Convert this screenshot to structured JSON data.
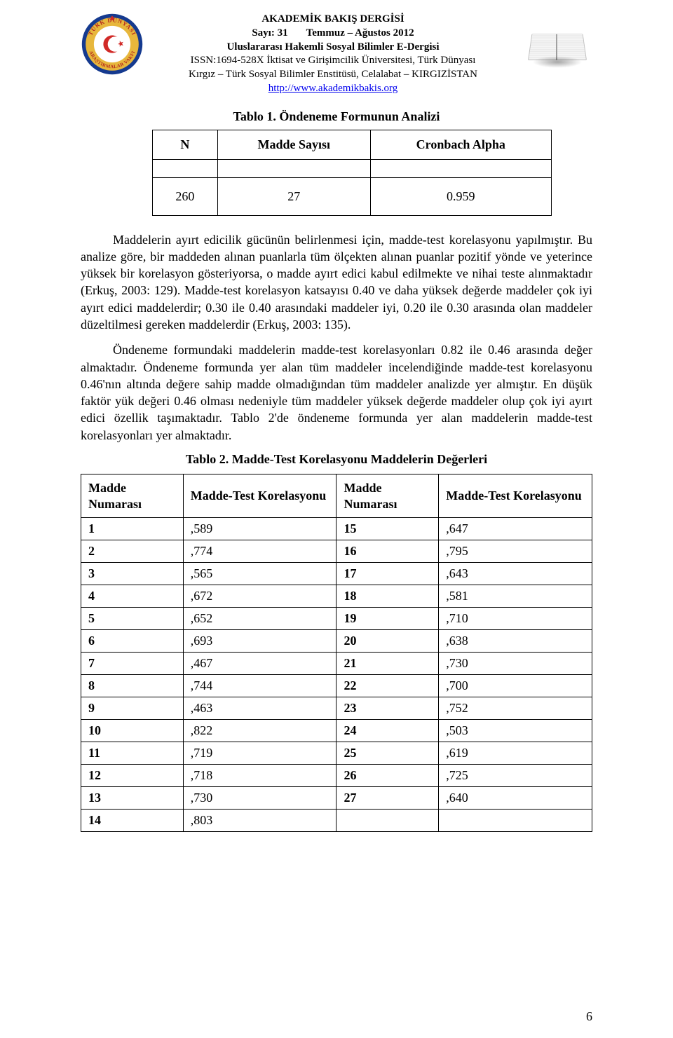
{
  "header": {
    "journal_title": "AKADEMİK BAKIŞ DERGİSİ",
    "issue_prefix": "Sayı: 31",
    "issue_date": "Temmuz – Ağustos 2012",
    "subtitle": "Uluslararası Hakemli Sosyal Bilimler E-Dergisi",
    "issn_line": "ISSN:1694-528X İktisat ve Girişimcilik Üniversitesi, Türk Dünyası",
    "affiliation": "Kırgız – Türk Sosyal Bilimler Enstitüsü, Celalabat – KIRGIZİSTAN",
    "url": "http://www.akademikbakis.org",
    "logo_left": {
      "outer_ring_color": "#153a8f",
      "mid_ring_color": "#e7b73c",
      "inner_color": "#ffffff",
      "star_color": "#d12a27",
      "text_color": "#b3261d",
      "top_text": "TÜRK DÜNYASI",
      "bottom_text": "ARAŞTIRMALAR VAKFI"
    }
  },
  "tbl1": {
    "title": "Tablo 1. Öndeneme Formunun Analizi",
    "headers": [
      "N",
      "Madde Sayısı",
      "Cronbach Alpha"
    ],
    "row": [
      "260",
      "27",
      "0.959"
    ]
  },
  "paragraphs": {
    "p1": "Maddelerin ayırt edicilik gücünün belirlenmesi için, madde-test korelasyonu yapılmıştır. Bu analize göre, bir maddeden alınan puanlarla tüm ölçekten alınan puanlar pozitif yönde ve yeterince yüksek bir korelasyon gösteriyorsa, o madde ayırt edici kabul edilmekte ve nihai teste alınmaktadır (Erkuş, 2003: 129). Madde-test korelasyon katsayısı 0.40 ve daha yüksek değerde maddeler çok iyi ayırt edici maddelerdir; 0.30 ile 0.40 arasındaki maddeler iyi, 0.20 ile 0.30 arasında olan maddeler düzeltilmesi gereken maddelerdir (Erkuş, 2003: 135).",
    "p2": "Öndeneme formundaki maddelerin madde-test korelasyonları 0.82 ile 0.46 arasında değer almaktadır. Öndeneme formunda yer alan tüm maddeler incelendiğinde madde-test korelasyonu 0.46'nın altında değere sahip madde olmadığından tüm maddeler analizde yer almıştır. En düşük faktör yük değeri 0.46 olması nedeniyle tüm maddeler yüksek değerde maddeler olup çok iyi ayırt edici özellik taşımaktadır. Tablo 2'de öndeneme formunda yer alan maddelerin madde-test korelasyonları yer almaktadır."
  },
  "tbl2": {
    "title": "Tablo 2. Madde-Test Korelasyonu Maddelerin Değerleri",
    "headers": [
      "Madde Numarası",
      "Madde-Test Korelasyonu",
      "Madde Numarası",
      "Madde-Test Korelasyonu"
    ],
    "rows": [
      [
        "1",
        ",589",
        "15",
        ",647"
      ],
      [
        "2",
        ",774",
        "16",
        ",795"
      ],
      [
        "3",
        ",565",
        "17",
        ",643"
      ],
      [
        "4",
        ",672",
        "18",
        ",581"
      ],
      [
        "5",
        ",652",
        "19",
        ",710"
      ],
      [
        "6",
        ",693",
        "20",
        ",638"
      ],
      [
        "7",
        ",467",
        "21",
        ",730"
      ],
      [
        "8",
        ",744",
        "22",
        ",700"
      ],
      [
        "9",
        ",463",
        "23",
        ",752"
      ],
      [
        "10",
        ",822",
        "24",
        ",503"
      ],
      [
        "11",
        ",719",
        "25",
        ",619"
      ],
      [
        "12",
        ",718",
        "26",
        ",725"
      ],
      [
        "13",
        ",730",
        "27",
        ",640"
      ],
      [
        "14",
        ",803",
        "",
        ""
      ]
    ]
  },
  "page_number": "6"
}
